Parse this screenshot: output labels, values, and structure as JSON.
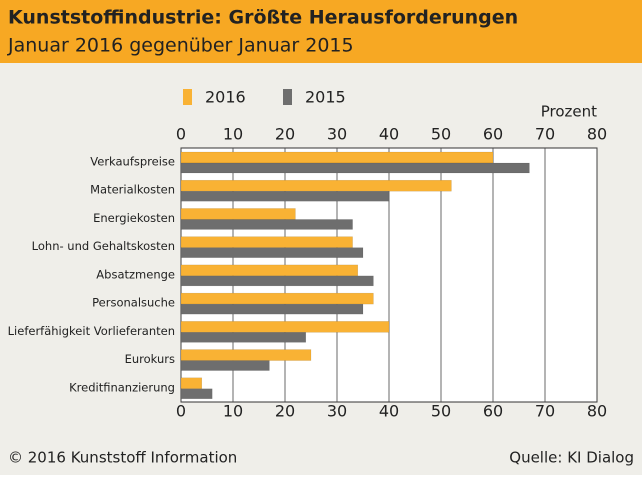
{
  "chart_data": {
    "type": "bar",
    "orientation": "horizontal",
    "title": "Kunststoffindustrie: Größte Herausforderungen",
    "subtitle": "Januar 2016 gegenüber Januar 2015",
    "xlabel": "Prozent",
    "categories": [
      "Verkaufspreise",
      "Materialkosten",
      "Energiekosten",
      "Lohn- und Gehaltskosten",
      "Absatzmenge",
      "Personalsuche",
      "Lieferfähigkeit Vorlieferanten",
      "Eurokurs",
      "Kreditfinanzierung"
    ],
    "series": [
      {
        "name": "2016",
        "color": "#f9b234",
        "values": [
          60,
          52,
          22,
          33,
          34,
          37,
          40,
          25,
          4
        ]
      },
      {
        "name": "2015",
        "color": "#6e6e6e",
        "values": [
          67,
          40,
          33,
          35,
          37,
          35,
          24,
          17,
          6
        ]
      }
    ],
    "xlim": [
      0,
      80
    ],
    "xticks": [
      0,
      10,
      20,
      30,
      40,
      50,
      60,
      70,
      80
    ],
    "grid": true,
    "copyright": "© 2016 Kunststoff Information",
    "source": "Quelle: KI Dialog"
  }
}
